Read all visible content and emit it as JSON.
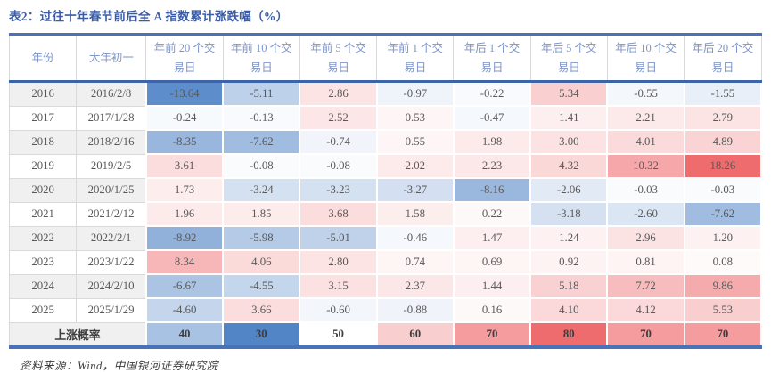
{
  "page": {
    "title": "表2：过往十年春节前后全 A 指数累计涨跌幅（%）",
    "source": "资料来源：Wind，中国银河证券研究院"
  },
  "colors": {
    "title_text": "#3A5BA6",
    "header_text": "#7E95C9",
    "border_blue": "#4A72B8",
    "header_underline": "#3D63A9",
    "grid_line": "#D9D9D9",
    "stripe_gray": "#F0F0F0",
    "row_white": "#FFFFFF",
    "data_text": "#595959",
    "negative_max_color": "#5E8DCB",
    "positive_max_color": "#EE6B6E",
    "summary_blue_max": "#5185C6",
    "summary_red_max": "#EE6B6E"
  },
  "chart_data": {
    "type": "table",
    "title": "过往十年春节前后全 A 指数累计涨跌幅（%）",
    "columns": [
      "年份",
      "大年初一",
      "年前 20 个交易日",
      "年前 10 个交易日",
      "年前 5 个交易日",
      "年前 1 个交易日",
      "年后 1 个交易日",
      "年后 5 个交易日",
      "年后 10 个交易日",
      "年后 20 个交易日"
    ],
    "rows": [
      {
        "year": "2016",
        "date": "2016/2/8",
        "values": [
          "-13.64",
          "-5.11",
          "2.86",
          "-0.97",
          "-0.22",
          "5.34",
          "-0.55",
          "-1.55"
        ]
      },
      {
        "year": "2017",
        "date": "2017/1/28",
        "values": [
          "-0.24",
          "-0.13",
          "2.52",
          "0.53",
          "-0.47",
          "1.41",
          "2.21",
          "2.79"
        ]
      },
      {
        "year": "2018",
        "date": "2018/2/16",
        "values": [
          "-8.35",
          "-7.62",
          "-0.74",
          "0.55",
          "1.98",
          "3.00",
          "4.01",
          "4.89"
        ]
      },
      {
        "year": "2019",
        "date": "2019/2/5",
        "values": [
          "3.61",
          "-0.08",
          "-0.08",
          "2.02",
          "2.23",
          "4.32",
          "10.32",
          "18.26"
        ]
      },
      {
        "year": "2020",
        "date": "2020/1/25",
        "values": [
          "1.73",
          "-3.24",
          "-3.23",
          "-3.27",
          "-8.16",
          "-2.06",
          "-0.03",
          "-0.03"
        ]
      },
      {
        "year": "2021",
        "date": "2021/2/12",
        "values": [
          "1.96",
          "1.85",
          "3.68",
          "1.58",
          "0.22",
          "-3.18",
          "-2.60",
          "-7.62"
        ]
      },
      {
        "year": "2022",
        "date": "2022/2/1",
        "values": [
          "-8.92",
          "-5.98",
          "-5.01",
          "-0.46",
          "1.47",
          "1.24",
          "2.96",
          "1.20"
        ]
      },
      {
        "year": "2023",
        "date": "2023/1/22",
        "values": [
          "8.34",
          "4.06",
          "2.80",
          "0.74",
          "0.69",
          "0.92",
          "0.81",
          "0.08"
        ]
      },
      {
        "year": "2024",
        "date": "2024/2/10",
        "values": [
          "-6.67",
          "-4.55",
          "3.15",
          "2.37",
          "1.44",
          "5.18",
          "7.72",
          "9.86"
        ]
      },
      {
        "year": "2025",
        "date": "2025/1/29",
        "values": [
          "-4.60",
          "3.66",
          "-0.60",
          "-0.88",
          "0.16",
          "4.10",
          "4.12",
          "5.53"
        ]
      }
    ],
    "summary_row": {
      "label": "上涨概率",
      "values": [
        "40",
        "30",
        "50",
        "60",
        "70",
        "80",
        "70",
        "70"
      ]
    },
    "value_range": {
      "min": -13.64,
      "mid": 0,
      "max": 18.26
    },
    "summary_range": {
      "min": 30,
      "mid": 50,
      "max": 80
    },
    "color_scale": "blue-white-red diverging heatmap"
  }
}
